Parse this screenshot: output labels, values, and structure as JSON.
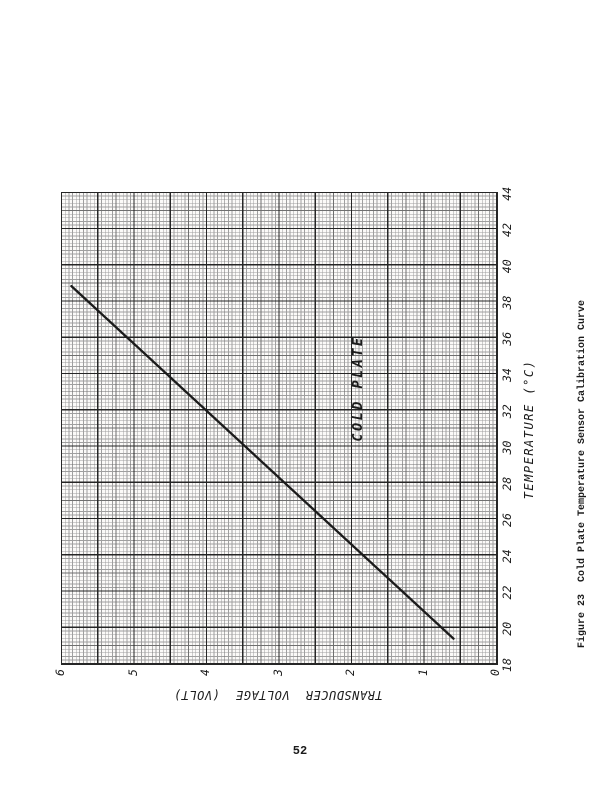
{
  "page": {
    "number": "52"
  },
  "figure": {
    "caption": "Figure 23  Cold Plate Temperature Sensor Calibration Curve"
  },
  "chart_data": {
    "type": "line",
    "title": "",
    "xlabel": "TEMPERATURE (°C)",
    "ylabel": "TRANSDUCER VOLTAGE (VOLT)",
    "xlim": [
      18,
      44
    ],
    "ylim": [
      0,
      6
    ],
    "x_ticks": [
      18,
      20,
      22,
      24,
      26,
      28,
      30,
      32,
      34,
      36,
      38,
      40,
      42,
      44
    ],
    "y_ticks": [
      0,
      1,
      2,
      3,
      4,
      5,
      6
    ],
    "grid": "engineering graph paper: fine lines every 0.05 major, medium every 0.5, major every 2 °C / 0.5 V",
    "layout": "chart rotated 90° counterclockwise on portrait page; temperature axis reads bottom-to-top on right edge",
    "annotation": {
      "text": "COLD PLATE",
      "x": 33.2,
      "y": 1.92
    },
    "series": [
      {
        "name": "calibration-line",
        "x": [
          19.4,
          38.85
        ],
        "y": [
          0.6,
          5.87
        ]
      }
    ]
  },
  "colors": {
    "paper": "#ffffff",
    "grid_paper": "#fbfaf8",
    "grid_fine": "#9f9f9f",
    "grid_medium": "#6f6f6f",
    "grid_major": "#262626",
    "ink": "#1b1b1b"
  }
}
